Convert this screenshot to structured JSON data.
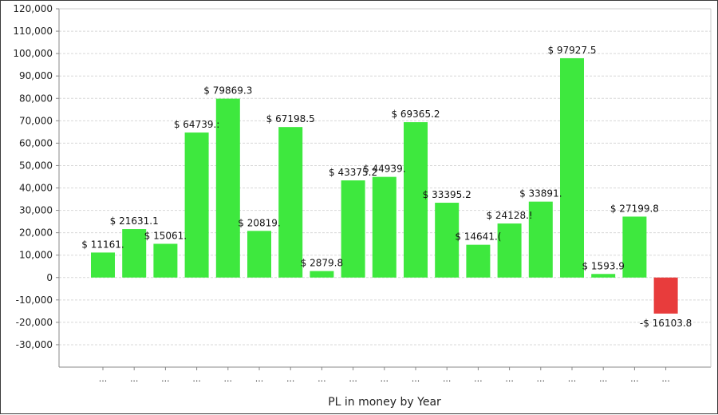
{
  "chart_data": {
    "type": "bar",
    "title": "",
    "xlabel": "PL in money by Year",
    "ylabel": "",
    "ylim": [
      -40000,
      120000
    ],
    "yticks": [
      120000,
      110000,
      100000,
      90000,
      80000,
      70000,
      60000,
      50000,
      40000,
      30000,
      20000,
      10000,
      0,
      -10000,
      -20000,
      -30000
    ],
    "ytick_labels": [
      "120,000",
      "110,000",
      "100,000",
      "90,000",
      "80,000",
      "70,000",
      "60,000",
      "50,000",
      "40,000",
      "30,000",
      "20,000",
      "10,000",
      "0",
      "-10,000",
      "-20,000",
      "-30,000"
    ],
    "grid": true,
    "categories": [
      "...",
      "...",
      "...",
      "...",
      "...",
      "...",
      "...",
      "...",
      "...",
      "...",
      "...",
      "...",
      "...",
      "...",
      "...",
      "...",
      "...",
      "...",
      "..."
    ],
    "values": [
      11161,
      21631.1,
      15061,
      64739,
      79869.3,
      20819,
      67198.5,
      2879.8,
      43375.2,
      44939,
      69365.2,
      33395.2,
      14641,
      24128,
      33891,
      97927.5,
      1593.9,
      27199.8,
      -16103.8
    ],
    "data_labels": [
      "$ 11161.",
      "$ 21631.1",
      "$ 15061.",
      "$ 64739.:",
      "$ 79869.3",
      "$ 20819.",
      "$ 67198.5",
      "$ 2879.8",
      "$ 43375.2",
      "$ 44939.",
      "$ 69365.2",
      "$ 33395.2",
      "$ 14641.(",
      "$ 24128.!",
      "$ 33891.",
      "$ 97927.5",
      "$ 1593.9",
      "$ 27199.8",
      "-$ 16103.8"
    ],
    "colors": {
      "positive": "#3ee83e",
      "negative": "#e83c3c",
      "grid": "#d8d8d8",
      "axis": "#888888"
    }
  }
}
